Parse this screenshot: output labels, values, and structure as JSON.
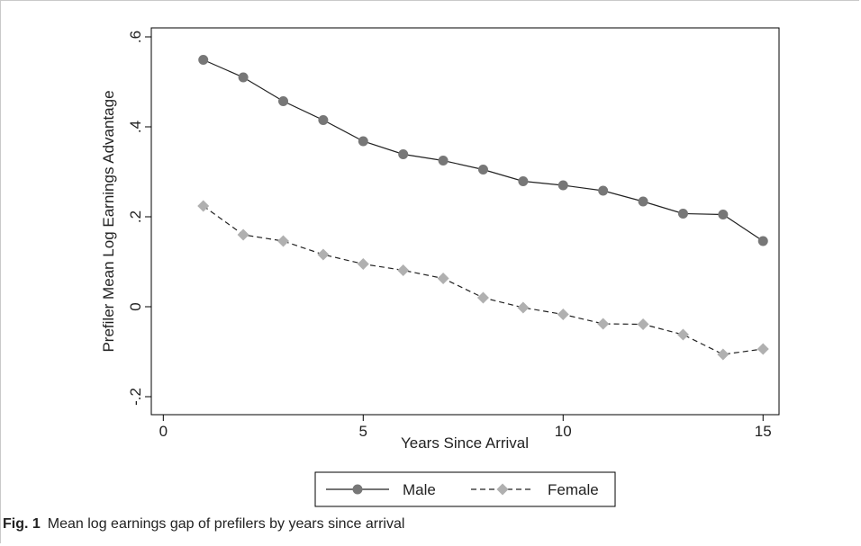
{
  "caption": {
    "label": "Fig. 1",
    "text": "Mean log earnings gap of prefilers by years since arrival"
  },
  "chart_data": {
    "type": "line",
    "title": "",
    "xlabel": "Years Since Arrival",
    "ylabel": "Prefiler Mean Log Earnings Advantage",
    "xlim": [
      -0.3,
      15.4
    ],
    "ylim": [
      -0.24,
      0.62
    ],
    "x_ticks": [
      0,
      5,
      10,
      15
    ],
    "x_tick_labels": [
      "0",
      "5",
      "10",
      "15"
    ],
    "y_ticks": [
      -0.2,
      0,
      0.2,
      0.4,
      0.6
    ],
    "y_tick_labels": [
      "-.2",
      "0",
      ".2",
      ".4",
      ".6"
    ],
    "grid": false,
    "legend_position": "bottom",
    "x": [
      1,
      2,
      3,
      4,
      5,
      6,
      7,
      8,
      9,
      10,
      11,
      12,
      13,
      14,
      15
    ],
    "series": [
      {
        "name": "Male",
        "marker": "circle",
        "line_style": "solid",
        "color": "#777777",
        "line_color": "#222222",
        "values": [
          0.549,
          0.51,
          0.457,
          0.415,
          0.368,
          0.339,
          0.325,
          0.305,
          0.279,
          0.27,
          0.258,
          0.234,
          0.207,
          0.205,
          0.146
        ]
      },
      {
        "name": "Female",
        "marker": "diamond",
        "line_style": "dashed",
        "color": "#b0b0b0",
        "line_color": "#222222",
        "values": [
          0.224,
          0.16,
          0.146,
          0.116,
          0.095,
          0.081,
          0.063,
          0.02,
          -0.002,
          -0.017,
          -0.038,
          -0.039,
          -0.062,
          -0.106,
          -0.094
        ]
      }
    ]
  }
}
